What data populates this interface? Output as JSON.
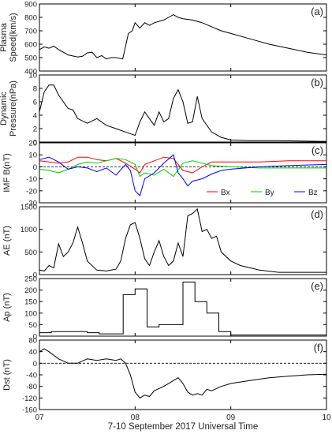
{
  "chart_data": [
    {
      "type": "line",
      "panel_label": "(a)",
      "ylabel": [
        "Plasma",
        "Speed(km/s)"
      ],
      "ylim": [
        400,
        900
      ],
      "yticks": [
        400,
        500,
        600,
        700,
        800,
        900
      ],
      "series": [
        {
          "color": "#000000",
          "points": [
            [
              7.0,
              560
            ],
            [
              7.05,
              580
            ],
            [
              7.1,
              570
            ],
            [
              7.15,
              585
            ],
            [
              7.2,
              560
            ],
            [
              7.3,
              520
            ],
            [
              7.4,
              505
            ],
            [
              7.45,
              510
            ],
            [
              7.5,
              535
            ],
            [
              7.55,
              540
            ],
            [
              7.6,
              500
            ],
            [
              7.65,
              515
            ],
            [
              7.7,
              490
            ],
            [
              7.75,
              500
            ],
            [
              7.8,
              500
            ],
            [
              7.87,
              490
            ],
            [
              7.93,
              680
            ],
            [
              7.97,
              700
            ],
            [
              8.0,
              760
            ],
            [
              8.05,
              720
            ],
            [
              8.1,
              760
            ],
            [
              8.15,
              740
            ],
            [
              8.2,
              760
            ],
            [
              8.3,
              780
            ],
            [
              8.35,
              800
            ],
            [
              8.4,
              820
            ],
            [
              8.45,
              800
            ],
            [
              8.5,
              790
            ],
            [
              8.6,
              780
            ],
            [
              8.7,
              760
            ],
            [
              8.8,
              730
            ],
            [
              8.9,
              700
            ],
            [
              9.0,
              680
            ],
            [
              9.2,
              640
            ],
            [
              9.4,
              600
            ],
            [
              9.6,
              570
            ],
            [
              9.8,
              540
            ],
            [
              10.0,
              520
            ]
          ]
        }
      ]
    },
    {
      "type": "line",
      "panel_label": "(b)",
      "ylabel": [
        "Dynamic",
        "Pressure(nPa)"
      ],
      "ylim": [
        0,
        10
      ],
      "yticks": [
        0,
        2,
        4,
        6,
        8,
        10
      ],
      "series": [
        {
          "color": "#000000",
          "points": [
            [
              7.0,
              4.5
            ],
            [
              7.05,
              7.5
            ],
            [
              7.1,
              8.5
            ],
            [
              7.15,
              8.5
            ],
            [
              7.2,
              7.0
            ],
            [
              7.3,
              5.0
            ],
            [
              7.35,
              4.8
            ],
            [
              7.4,
              3.5
            ],
            [
              7.5,
              2.8
            ],
            [
              7.6,
              3.5
            ],
            [
              7.7,
              2.5
            ],
            [
              7.8,
              2.0
            ],
            [
              7.9,
              1.5
            ],
            [
              8.0,
              1.0
            ],
            [
              8.05,
              3.0
            ],
            [
              8.1,
              4.5
            ],
            [
              8.15,
              3.5
            ],
            [
              8.2,
              2.5
            ],
            [
              8.25,
              4.5
            ],
            [
              8.3,
              3.0
            ],
            [
              8.35,
              3.5
            ],
            [
              8.4,
              6.5
            ],
            [
              8.45,
              7.8
            ],
            [
              8.5,
              6.0
            ],
            [
              8.55,
              2.8
            ],
            [
              8.6,
              3.0
            ],
            [
              8.65,
              6.8
            ],
            [
              8.7,
              3.5
            ],
            [
              8.8,
              1.5
            ],
            [
              8.9,
              0.7
            ],
            [
              9.0,
              0.3
            ],
            [
              9.2,
              0.2
            ],
            [
              9.5,
              0.2
            ],
            [
              10.0,
              0.1
            ]
          ]
        }
      ]
    },
    {
      "type": "line",
      "panel_label": "(c)",
      "ylabel": [
        "IMF B(nT)"
      ],
      "ylim": [
        -30,
        20
      ],
      "yticks": [
        -30,
        -20,
        -10,
        0,
        10,
        20
      ],
      "zero_line": true,
      "legend": "bottom-right",
      "series": [
        {
          "name": "Bx",
          "color": "#ff0000",
          "points": [
            [
              7.0,
              5
            ],
            [
              7.1,
              4
            ],
            [
              7.2,
              3
            ],
            [
              7.3,
              4
            ],
            [
              7.4,
              8
            ],
            [
              7.5,
              8
            ],
            [
              7.6,
              6
            ],
            [
              7.7,
              5
            ],
            [
              7.8,
              7
            ],
            [
              7.9,
              3
            ],
            [
              8.0,
              -2
            ],
            [
              8.05,
              -5
            ],
            [
              8.1,
              2
            ],
            [
              8.2,
              5
            ],
            [
              8.3,
              8
            ],
            [
              8.4,
              7
            ],
            [
              8.5,
              -3
            ],
            [
              8.6,
              -5
            ],
            [
              8.7,
              0
            ],
            [
              8.8,
              4
            ],
            [
              9.0,
              4
            ],
            [
              9.3,
              4
            ],
            [
              9.6,
              5
            ],
            [
              10.0,
              5
            ]
          ]
        },
        {
          "name": "By",
          "color": "#00cc00",
          "points": [
            [
              7.0,
              -2
            ],
            [
              7.1,
              -3
            ],
            [
              7.2,
              -5
            ],
            [
              7.3,
              -2
            ],
            [
              7.4,
              2
            ],
            [
              7.5,
              4
            ],
            [
              7.6,
              3
            ],
            [
              7.7,
              5
            ],
            [
              7.8,
              7
            ],
            [
              7.9,
              6
            ],
            [
              8.0,
              2
            ],
            [
              8.05,
              -8
            ],
            [
              8.1,
              -5
            ],
            [
              8.2,
              -7
            ],
            [
              8.3,
              -2
            ],
            [
              8.4,
              -8
            ],
            [
              8.5,
              3
            ],
            [
              8.6,
              5
            ],
            [
              8.7,
              3
            ],
            [
              8.8,
              1
            ],
            [
              9.0,
              0
            ],
            [
              9.3,
              -1
            ],
            [
              9.6,
              -1
            ],
            [
              10.0,
              -1
            ]
          ]
        },
        {
          "name": "Bz",
          "color": "#0000ff",
          "points": [
            [
              7.0,
              6
            ],
            [
              7.1,
              8
            ],
            [
              7.2,
              4
            ],
            [
              7.3,
              -2
            ],
            [
              7.4,
              0
            ],
            [
              7.5,
              -1
            ],
            [
              7.6,
              -4
            ],
            [
              7.7,
              -1
            ],
            [
              7.8,
              -7
            ],
            [
              7.9,
              2
            ],
            [
              7.95,
              -3
            ],
            [
              8.0,
              -20
            ],
            [
              8.05,
              -24
            ],
            [
              8.1,
              -10
            ],
            [
              8.2,
              -5
            ],
            [
              8.3,
              3
            ],
            [
              8.4,
              10
            ],
            [
              8.45,
              -5
            ],
            [
              8.5,
              -10
            ],
            [
              8.55,
              -16
            ],
            [
              8.6,
              -12
            ],
            [
              8.7,
              -10
            ],
            [
              8.8,
              -6
            ],
            [
              8.9,
              -3
            ],
            [
              9.0,
              -2
            ],
            [
              9.3,
              0
            ],
            [
              9.6,
              1
            ],
            [
              10.0,
              2
            ]
          ]
        }
      ]
    },
    {
      "type": "line",
      "panel_label": "(d)",
      "ylabel": [
        "AE (nT)"
      ],
      "ylim": [
        0,
        1500
      ],
      "yticks": [
        0,
        500,
        1000,
        1500
      ],
      "series": [
        {
          "color": "#000000",
          "points": [
            [
              7.0,
              100
            ],
            [
              7.05,
              80
            ],
            [
              7.1,
              200
            ],
            [
              7.15,
              150
            ],
            [
              7.2,
              680
            ],
            [
              7.25,
              400
            ],
            [
              7.3,
              500
            ],
            [
              7.35,
              700
            ],
            [
              7.4,
              1050
            ],
            [
              7.45,
              700
            ],
            [
              7.5,
              300
            ],
            [
              7.6,
              100
            ],
            [
              7.7,
              80
            ],
            [
              7.8,
              120
            ],
            [
              7.85,
              300
            ],
            [
              7.9,
              800
            ],
            [
              7.95,
              1100
            ],
            [
              8.0,
              1150
            ],
            [
              8.05,
              800
            ],
            [
              8.1,
              350
            ],
            [
              8.15,
              200
            ],
            [
              8.2,
              500
            ],
            [
              8.25,
              750
            ],
            [
              8.3,
              400
            ],
            [
              8.35,
              200
            ],
            [
              8.4,
              300
            ],
            [
              8.45,
              700
            ],
            [
              8.5,
              400
            ],
            [
              8.55,
              1300
            ],
            [
              8.6,
              1350
            ],
            [
              8.65,
              1450
            ],
            [
              8.7,
              950
            ],
            [
              8.75,
              1000
            ],
            [
              8.8,
              800
            ],
            [
              8.85,
              850
            ],
            [
              8.9,
              500
            ],
            [
              9.0,
              300
            ],
            [
              9.1,
              200
            ],
            [
              9.2,
              150
            ],
            [
              9.3,
              100
            ],
            [
              9.5,
              50
            ],
            [
              9.7,
              50
            ],
            [
              10.0,
              50
            ]
          ]
        }
      ]
    },
    {
      "type": "line",
      "panel_label": "(e)",
      "ylabel": [
        "Ap (nT)"
      ],
      "ylim": [
        0,
        250
      ],
      "yticks": [
        0,
        50,
        100,
        150,
        200,
        250
      ],
      "step": true,
      "series": [
        {
          "color": "#000000",
          "points": [
            [
              7.0,
              15
            ],
            [
              7.125,
              15
            ],
            [
              7.125,
              20
            ],
            [
              7.5,
              20
            ],
            [
              7.5,
              15
            ],
            [
              7.625,
              15
            ],
            [
              7.625,
              10
            ],
            [
              7.875,
              10
            ],
            [
              7.875,
              180
            ],
            [
              8.0,
              180
            ],
            [
              8.0,
              205
            ],
            [
              8.125,
              205
            ],
            [
              8.125,
              40
            ],
            [
              8.25,
              40
            ],
            [
              8.25,
              50
            ],
            [
              8.5,
              50
            ],
            [
              8.5,
              235
            ],
            [
              8.625,
              235
            ],
            [
              8.625,
              150
            ],
            [
              8.75,
              150
            ],
            [
              8.75,
              100
            ],
            [
              8.875,
              100
            ],
            [
              8.875,
              20
            ],
            [
              9.0,
              20
            ],
            [
              9.0,
              5
            ],
            [
              10.0,
              5
            ]
          ]
        }
      ]
    },
    {
      "type": "line",
      "panel_label": "(f)",
      "ylabel": [
        "Dst (nT)"
      ],
      "ylim": [
        -160,
        80
      ],
      "yticks": [
        -160,
        -120,
        -80,
        -40,
        0,
        40,
        80
      ],
      "zero_line": true,
      "series": [
        {
          "color": "#000000",
          "points": [
            [
              7.0,
              40
            ],
            [
              7.05,
              50
            ],
            [
              7.1,
              40
            ],
            [
              7.2,
              15
            ],
            [
              7.3,
              0
            ],
            [
              7.4,
              0
            ],
            [
              7.5,
              15
            ],
            [
              7.6,
              10
            ],
            [
              7.7,
              15
            ],
            [
              7.8,
              10
            ],
            [
              7.85,
              15
            ],
            [
              7.9,
              0
            ],
            [
              7.95,
              -40
            ],
            [
              8.0,
              -100
            ],
            [
              8.05,
              -120
            ],
            [
              8.1,
              -110
            ],
            [
              8.15,
              -115
            ],
            [
              8.2,
              -95
            ],
            [
              8.3,
              -80
            ],
            [
              8.4,
              -60
            ],
            [
              8.45,
              -50
            ],
            [
              8.5,
              -70
            ],
            [
              8.55,
              -100
            ],
            [
              8.6,
              -110
            ],
            [
              8.65,
              -105
            ],
            [
              8.7,
              -110
            ],
            [
              8.75,
              -90
            ],
            [
              8.8,
              -95
            ],
            [
              8.9,
              -80
            ],
            [
              9.0,
              -70
            ],
            [
              9.2,
              -60
            ],
            [
              9.4,
              -50
            ],
            [
              9.6,
              -45
            ],
            [
              9.8,
              -40
            ],
            [
              10.0,
              -38
            ]
          ]
        }
      ]
    }
  ],
  "x_axis": {
    "xlim": [
      7,
      10
    ],
    "ticks": [
      7,
      8,
      9,
      10
    ],
    "tick_labels": [
      "07",
      "08",
      "09",
      "10"
    ],
    "xlabel": "7-10 September 2017 Universal Time"
  }
}
